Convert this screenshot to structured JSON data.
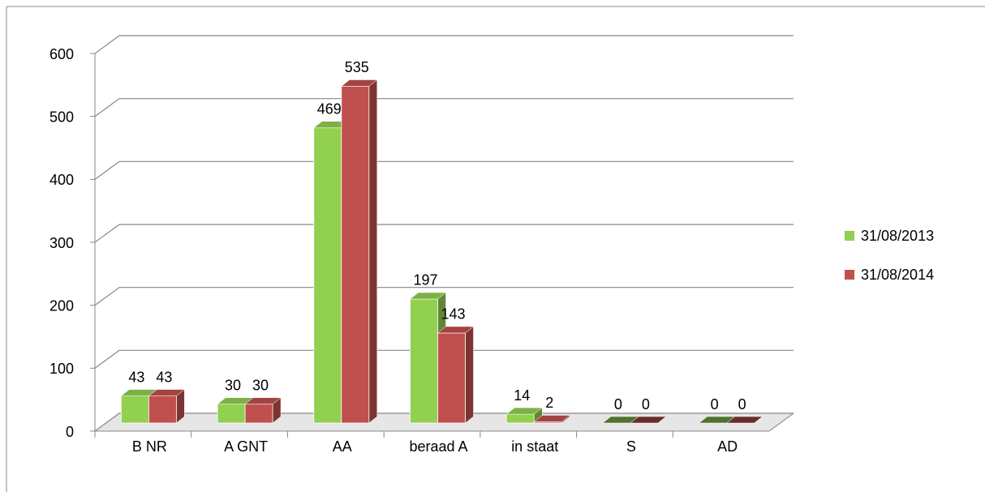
{
  "chart_data": {
    "type": "bar3d",
    "categories": [
      "B NR",
      "A GNT",
      "AA",
      "beraad A",
      "in staat",
      "S",
      "AD"
    ],
    "series": [
      {
        "name": "31/08/2013",
        "color": "#92d050",
        "values": [
          43,
          30,
          469,
          197,
          14,
          0,
          0
        ]
      },
      {
        "name": "31/08/2014",
        "color": "#c0504d",
        "values": [
          43,
          30,
          535,
          143,
          2,
          0,
          0
        ]
      }
    ],
    "ylim": [
      0,
      600
    ],
    "yticks": [
      0,
      100,
      200,
      300,
      400,
      500,
      600
    ],
    "grid": true,
    "legend": "right"
  }
}
